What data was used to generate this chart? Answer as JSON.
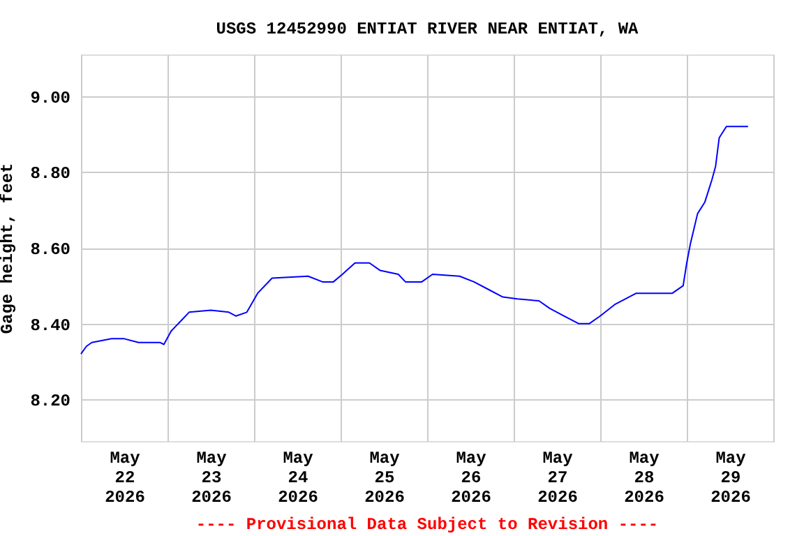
{
  "chart_data": {
    "type": "line",
    "title": "USGS 12452990 ENTIAT RIVER NEAR ENTIAT, WA",
    "ylabel": "Gage height, feet",
    "annotations": [
      "---- Provisional Data Subject to Revision ----"
    ],
    "grid": true,
    "ylim": [
      8.09,
      9.11
    ],
    "yticks": [
      {
        "value": 8.2,
        "label": "8.20"
      },
      {
        "value": 8.4,
        "label": "8.40"
      },
      {
        "value": 8.6,
        "label": "8.60"
      },
      {
        "value": 8.8,
        "label": "8.80"
      },
      {
        "value": 9.0,
        "label": "9.00"
      }
    ],
    "xlim": [
      "2026-05-22T00:00",
      "2026-05-30T00:00"
    ],
    "xticks": [
      {
        "value": "2026-05-22T00:00",
        "label": null
      },
      {
        "value": "2026-05-22T12:00",
        "label": "May\n22\n2026"
      },
      {
        "value": "2026-05-23T00:00",
        "label": null
      },
      {
        "value": "2026-05-23T12:00",
        "label": "May\n23\n2026"
      },
      {
        "value": "2026-05-24T00:00",
        "label": null
      },
      {
        "value": "2026-05-24T12:00",
        "label": "May\n24\n2026"
      },
      {
        "value": "2026-05-25T00:00",
        "label": null
      },
      {
        "value": "2026-05-25T12:00",
        "label": "May\n25\n2026"
      },
      {
        "value": "2026-05-26T00:00",
        "label": null
      },
      {
        "value": "2026-05-26T12:00",
        "label": "May\n26\n2026"
      },
      {
        "value": "2026-05-27T00:00",
        "label": null
      },
      {
        "value": "2026-05-27T12:00",
        "label": "May\n27\n2026"
      },
      {
        "value": "2026-05-28T00:00",
        "label": null
      },
      {
        "value": "2026-05-28T12:00",
        "label": "May\n28\n2026"
      },
      {
        "value": "2026-05-29T00:00",
        "label": null
      },
      {
        "value": "2026-05-29T12:00",
        "label": "May\n29\n2026"
      },
      {
        "value": "2026-05-30T00:00",
        "label": null
      }
    ],
    "x": [
      "2026-05-22T00:00",
      "2026-05-22T01:30",
      "2026-05-22T03:00",
      "2026-05-22T08:30",
      "2026-05-22T12:00",
      "2026-05-22T16:00",
      "2026-05-22T22:00",
      "2026-05-22T23:00",
      "2026-05-23T01:00",
      "2026-05-23T04:00",
      "2026-05-23T06:00",
      "2026-05-23T12:00",
      "2026-05-23T17:00",
      "2026-05-23T19:00",
      "2026-05-23T22:00",
      "2026-05-24T01:00",
      "2026-05-24T05:00",
      "2026-05-24T15:00",
      "2026-05-24T19:00",
      "2026-05-24T22:00",
      "2026-05-25T00:30",
      "2026-05-25T04:00",
      "2026-05-25T08:00",
      "2026-05-25T11:00",
      "2026-05-25T16:00",
      "2026-05-25T18:00",
      "2026-05-25T22:30",
      "2026-05-26T01:30",
      "2026-05-26T09:00",
      "2026-05-26T13:00",
      "2026-05-26T17:00",
      "2026-05-26T21:00",
      "2026-05-27T01:00",
      "2026-05-27T07:00",
      "2026-05-27T10:00",
      "2026-05-27T14:00",
      "2026-05-27T18:00",
      "2026-05-27T21:00",
      "2026-05-28T00:00",
      "2026-05-28T04:00",
      "2026-05-28T10:00",
      "2026-05-28T20:00",
      "2026-05-28T23:00",
      "2026-05-29T00:00",
      "2026-05-29T01:00",
      "2026-05-29T03:00",
      "2026-05-29T05:00",
      "2026-05-29T07:00",
      "2026-05-29T08:00",
      "2026-05-29T09:00",
      "2026-05-29T11:00",
      "2026-05-29T15:00",
      "2026-05-29T17:00"
    ],
    "series": [
      {
        "color": "#0000ff",
        "values": [
          8.32,
          8.34,
          8.35,
          8.36,
          8.36,
          8.35,
          8.35,
          8.345,
          8.38,
          8.41,
          8.43,
          8.435,
          8.43,
          8.42,
          8.43,
          8.48,
          8.52,
          8.525,
          8.51,
          8.51,
          8.53,
          8.56,
          8.56,
          8.54,
          8.53,
          8.51,
          8.51,
          8.53,
          8.525,
          8.51,
          8.49,
          8.47,
          8.465,
          8.46,
          8.44,
          8.42,
          8.4,
          8.4,
          8.42,
          8.45,
          8.48,
          8.48,
          8.5,
          8.56,
          8.61,
          8.69,
          8.72,
          8.78,
          8.815,
          8.89,
          8.92,
          8.92,
          8.92
        ]
      }
    ]
  }
}
